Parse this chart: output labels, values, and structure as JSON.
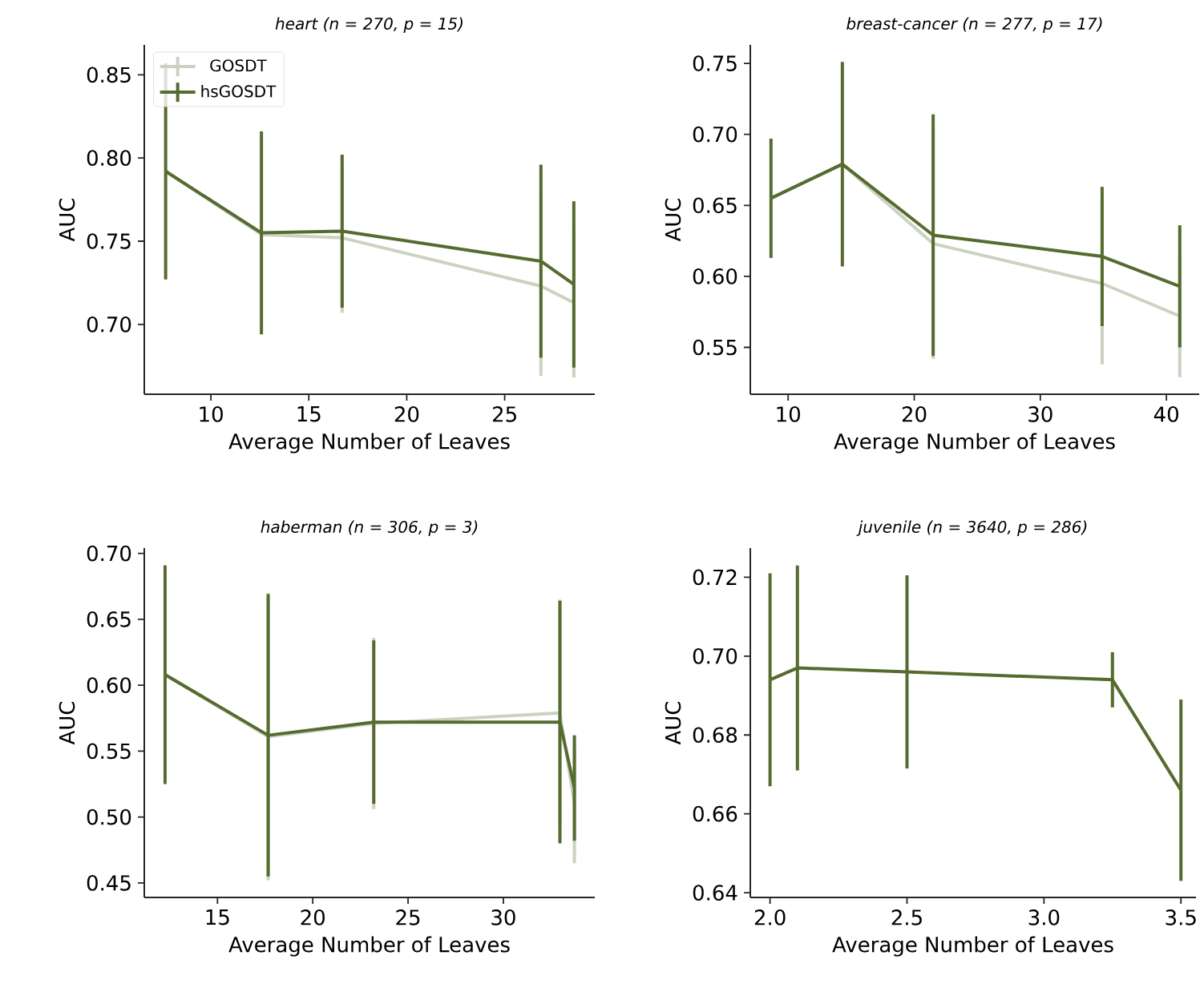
{
  "chart_data": [
    {
      "type": "line",
      "title": "heart (n = 270, p = 15)",
      "xlabel": "Average Number of Leaves",
      "ylabel": "AUC",
      "legend": "top left",
      "x": [
        7.69,
        12.58,
        16.7,
        26.85,
        28.53
      ],
      "series": [
        {
          "name": "GOSDT",
          "color": "#cbd3c0",
          "values": [
            0.792,
            0.754,
            0.752,
            0.723,
            0.713
          ],
          "errors": [
            null,
            null,
            0.045,
            0.054,
            0.045
          ]
        },
        {
          "name": "hsGOSDT",
          "color": "#556b2f",
          "values": [
            0.792,
            0.755,
            0.756,
            0.738,
            0.724
          ],
          "errors": [
            0.065,
            0.061,
            0.046,
            0.058,
            0.05
          ]
        }
      ],
      "xlim": [
        6.6,
        29.6
      ],
      "ylim": [
        0.658,
        0.868
      ],
      "xticks": [
        10,
        15,
        20,
        25
      ],
      "yticks": [
        {
          "value": 0.7,
          "label": "0.70"
        },
        {
          "value": 0.75,
          "label": "0.75"
        },
        {
          "value": 0.8,
          "label": "0.80"
        },
        {
          "value": 0.85,
          "label": "0.85"
        }
      ]
    },
    {
      "type": "line",
      "title": "breast-cancer (n = 277, p = 17)",
      "xlabel": "Average Number of Leaves",
      "ylabel": "AUC",
      "x": [
        8.64,
        14.3,
        21.5,
        34.9,
        41.06
      ],
      "series": [
        {
          "color": "#cbd3c0",
          "values": [
            0.655,
            0.679,
            0.623,
            0.595,
            0.572
          ],
          "errors": [
            null,
            null,
            0.081,
            0.057,
            0.043
          ]
        },
        {
          "color": "#556b2f",
          "values": [
            0.655,
            0.679,
            0.629,
            0.614,
            0.593
          ],
          "errors": [
            0.042,
            0.072,
            0.085,
            0.049,
            0.043
          ]
        }
      ],
      "xlim": [
        7.0,
        42.6
      ],
      "ylim": [
        0.517,
        0.763
      ],
      "xticks": [
        10,
        20,
        30,
        40
      ],
      "yticks": [
        {
          "value": 0.55,
          "label": "0.55"
        },
        {
          "value": 0.6,
          "label": "0.60"
        },
        {
          "value": 0.65,
          "label": "0.65"
        },
        {
          "value": 0.7,
          "label": "0.70"
        },
        {
          "value": 0.75,
          "label": "0.75"
        }
      ]
    },
    {
      "type": "line",
      "title": "haberman (n = 306, p = 3)",
      "xlabel": "Average Number of Leaves",
      "ylabel": "AUC",
      "x": [
        12.25,
        17.66,
        23.2,
        32.97,
        33.73
      ],
      "series": [
        {
          "color": "#cbd3c0",
          "values": [
            0.608,
            0.561,
            0.571,
            0.579,
            0.51
          ],
          "errors": [
            null,
            0.109,
            0.065,
            0.086,
            0.045
          ]
        },
        {
          "color": "#556b2f",
          "values": [
            0.608,
            0.562,
            0.572,
            0.572,
            0.522
          ],
          "errors": [
            0.083,
            0.107,
            0.062,
            0.092,
            0.04
          ]
        }
      ],
      "xlim": [
        11.16,
        34.8
      ],
      "ylim": [
        0.439,
        0.704
      ],
      "xticks": [
        15,
        20,
        25,
        30
      ],
      "yticks": [
        {
          "value": 0.45,
          "label": "0.45"
        },
        {
          "value": 0.5,
          "label": "0.50"
        },
        {
          "value": 0.55,
          "label": "0.55"
        },
        {
          "value": 0.6,
          "label": "0.60"
        },
        {
          "value": 0.65,
          "label": "0.65"
        },
        {
          "value": 0.7,
          "label": "0.70"
        }
      ]
    },
    {
      "type": "line",
      "title": "juvenile (n = 3640, p = 286)",
      "xlabel": "Average Number of Leaves",
      "ylabel": "AUC",
      "x": [
        2.0,
        2.1,
        2.5,
        3.25,
        3.5
      ],
      "series": [
        {
          "color": "#556b2f",
          "values": [
            0.694,
            0.697,
            0.696,
            0.694,
            0.666
          ],
          "errors": [
            0.027,
            0.026,
            0.0245,
            0.007,
            0.023
          ]
        }
      ],
      "xlim": [
        1.928,
        3.555
      ],
      "ylim": [
        0.6388,
        0.7274
      ],
      "xticks": [
        {
          "value": 2.0,
          "label": "2.0"
        },
        {
          "value": 2.5,
          "label": "2.5"
        },
        {
          "value": 3.0,
          "label": "3.0"
        },
        {
          "value": 3.5,
          "label": "3.5"
        }
      ],
      "yticks": [
        {
          "value": 0.64,
          "label": "0.64"
        },
        {
          "value": 0.66,
          "label": "0.66"
        },
        {
          "value": 0.68,
          "label": "0.68"
        },
        {
          "value": 0.7,
          "label": "0.70"
        },
        {
          "value": 0.72,
          "label": "0.72"
        }
      ]
    }
  ]
}
